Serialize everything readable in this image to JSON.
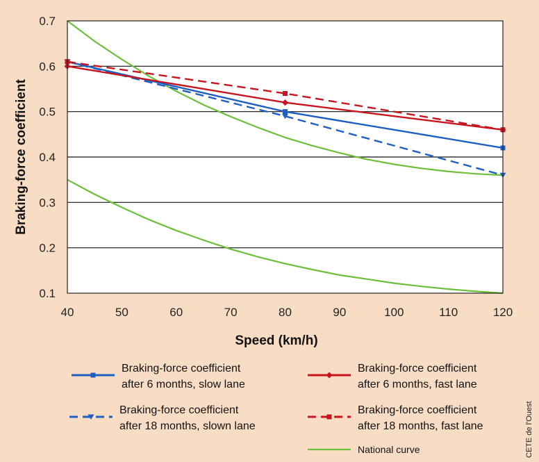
{
  "chart_data": {
    "type": "line",
    "xlabel": "Speed (km/h)",
    "ylabel": "Braking-force coefficient",
    "xlim": [
      40,
      120
    ],
    "ylim": [
      0.1,
      0.7
    ],
    "x_ticks": [
      "40",
      "50",
      "60",
      "70",
      "80",
      "90",
      "100",
      "110",
      "120"
    ],
    "y_ticks": [
      "0.1",
      "0.2",
      "0.3",
      "0.4",
      "0.5",
      "0.6",
      "0.7"
    ],
    "grid": "horizontal",
    "series": [
      {
        "name": "Braking-force coefficient after 6 months, slow lane",
        "label_lines": [
          "Braking-force coefficient",
          "after 6 months, slow lane"
        ],
        "color": "#1f5fc4",
        "dash": "solid",
        "marker": "square",
        "x": [
          40,
          80,
          120
        ],
        "values": [
          0.61,
          0.5,
          0.42
        ]
      },
      {
        "name": "Braking-force coefficient after 18 months, slown lane",
        "label_lines": [
          "Braking-force coefficient",
          "after 18 months, slown lane"
        ],
        "color": "#1f5fc4",
        "dash": "dashed",
        "marker": "triangle",
        "x": [
          40,
          80,
          120
        ],
        "values": [
          0.61,
          0.49,
          0.36
        ]
      },
      {
        "name": "Braking-force coefficient after 6 months, fast lane",
        "label_lines": [
          "Braking-force coefficient",
          "after 6 months, fast lane"
        ],
        "color": "#c8141e",
        "dash": "solid",
        "marker": "diamond",
        "x": [
          40,
          80,
          120
        ],
        "values": [
          0.6,
          0.52,
          0.46
        ]
      },
      {
        "name": "Braking-force coefficient after 18 months, fast lane",
        "label_lines": [
          "Braking-force coefficient",
          "after 18 months, fast lane"
        ],
        "color": "#c8141e",
        "dash": "dashed",
        "marker": "square",
        "x": [
          40,
          80,
          120
        ],
        "values": [
          0.61,
          0.54,
          0.46
        ]
      },
      {
        "name": "National curve",
        "label_lines": [
          "National curve"
        ],
        "color": "#6cbf3a",
        "dash": "solid",
        "marker": "none",
        "curves": [
          {
            "name": "upper",
            "x": [
              40,
              45,
              50,
              55,
              60,
              65,
              70,
              75,
              80,
              85,
              90,
              95,
              100,
              105,
              110,
              115,
              120
            ],
            "values": [
              0.7,
              0.655,
              0.615,
              0.578,
              0.545,
              0.515,
              0.489,
              0.465,
              0.443,
              0.425,
              0.409,
              0.395,
              0.384,
              0.375,
              0.368,
              0.363,
              0.36
            ]
          },
          {
            "name": "lower",
            "x": [
              40,
              45,
              50,
              55,
              60,
              65,
              70,
              75,
              80,
              85,
              90,
              95,
              100,
              105,
              110,
              115,
              120
            ],
            "values": [
              0.35,
              0.318,
              0.289,
              0.262,
              0.238,
              0.217,
              0.197,
              0.18,
              0.165,
              0.152,
              0.14,
              0.131,
              0.122,
              0.115,
              0.109,
              0.104,
              0.1
            ]
          }
        ]
      }
    ]
  },
  "credit": "CETE de l'Ouest"
}
